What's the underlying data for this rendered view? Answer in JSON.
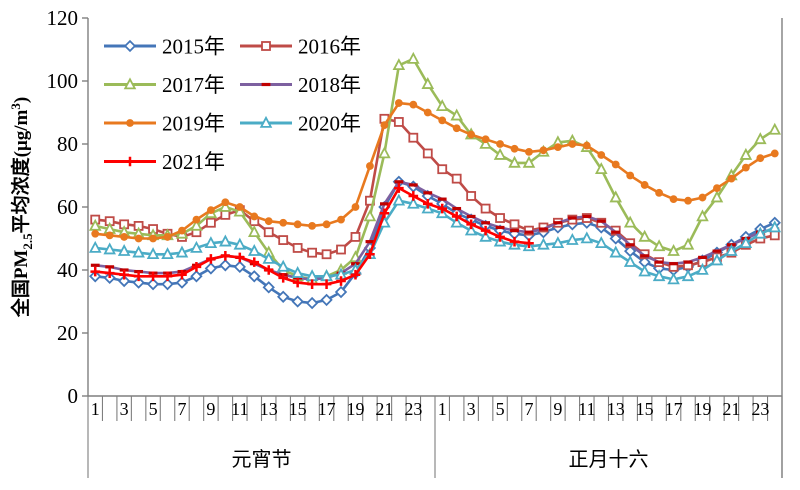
{
  "chart_data": {
    "type": "line",
    "title": "",
    "ylabel_plain": "全国PM2.5平均浓度(μg/m3)",
    "ylabel_parts": {
      "prefix": "全国PM",
      "sub": "2.5",
      "mid": "平均浓度(μg/m",
      "sup": "3",
      "suffix": ")"
    },
    "ylim": [
      0,
      120
    ],
    "yticks": [
      0,
      20,
      40,
      60,
      80,
      100,
      120
    ],
    "grid": false,
    "legend_position": "top-left-inside",
    "axis_color": "#7f7f7f",
    "text_color": "#000000",
    "hours_per_day": 24,
    "day_groups": [
      {
        "label": "元宵节"
      },
      {
        "label": "正月十六"
      }
    ],
    "xtick_labels": [
      "1",
      "3",
      "5",
      "7",
      "9",
      "11",
      "13",
      "15",
      "17",
      "19",
      "21",
      "23"
    ],
    "series": [
      {
        "name": "2015年",
        "color": "#4476b8",
        "marker": "diamond",
        "values": [
          38,
          37.5,
          36.5,
          36,
          35.5,
          35.5,
          36,
          38,
          40.5,
          41.5,
          41,
          38,
          34.5,
          31.5,
          30,
          29.5,
          30.5,
          33,
          39,
          47,
          60,
          68,
          66.5,
          63.5,
          61,
          58,
          56,
          54,
          52.5,
          51.5,
          51,
          52,
          53.5,
          54.5,
          55,
          53.5,
          50,
          46,
          42.5,
          40.5,
          40,
          41,
          43,
          45.5,
          48,
          50.5,
          53,
          55
        ]
      },
      {
        "name": "2016年",
        "color": "#bf4b47",
        "marker": "square",
        "values": [
          56,
          55.5,
          54.5,
          54,
          53,
          51.5,
          50.5,
          52,
          55,
          57.5,
          59,
          55.5,
          52,
          49.5,
          47,
          45.5,
          45,
          46.5,
          50.5,
          62,
          88,
          87,
          82,
          77,
          72,
          69,
          63.5,
          59.5,
          56.5,
          54.5,
          52.5,
          53.5,
          55,
          56,
          56.5,
          55,
          52.5,
          48.5,
          45,
          42.5,
          41,
          41.5,
          42.5,
          44,
          45.5,
          48,
          50,
          51
        ]
      },
      {
        "name": "2017年",
        "color": "#9bbb59",
        "marker": "triangle",
        "values": [
          54,
          53,
          52,
          51.5,
          51,
          51,
          51.5,
          54,
          58,
          60,
          58.5,
          52,
          45.5,
          40,
          38,
          37,
          38,
          40,
          44,
          57,
          77,
          105,
          107,
          99,
          92,
          89,
          83,
          80,
          76.5,
          74,
          74,
          77.5,
          80.5,
          81,
          79,
          72,
          63,
          55,
          50.5,
          47.5,
          46,
          48,
          57,
          63,
          70,
          76.5,
          81.5,
          84.5
        ]
      },
      {
        "name": "2018年",
        "color": "#7d60a0",
        "marker": "dash",
        "marker_color": "#c00000",
        "values": [
          41.5,
          41,
          40,
          39.5,
          39,
          39,
          39.5,
          41.5,
          43.5,
          44.5,
          44,
          42,
          40,
          38.5,
          37.5,
          37,
          37.5,
          39,
          42,
          49,
          61,
          68,
          67,
          64.5,
          62.5,
          59.5,
          57,
          55,
          53.5,
          52.5,
          52,
          53,
          55,
          56.5,
          57,
          55.5,
          52,
          48,
          44.5,
          42.5,
          42,
          42.5,
          44,
          46,
          48,
          50,
          52,
          53
        ]
      },
      {
        "name": "2019年",
        "color": "#e8791f",
        "marker": "circle",
        "values": [
          51.5,
          51,
          50.5,
          50,
          50,
          50.5,
          52.5,
          56,
          59,
          61.5,
          60,
          57,
          55.5,
          55,
          54.5,
          54,
          54.5,
          56,
          60,
          73,
          86,
          93,
          92.5,
          90,
          87.5,
          85,
          83,
          81.5,
          80,
          78.5,
          77.5,
          78,
          79,
          80,
          79.5,
          76.5,
          73.5,
          70,
          67,
          64.5,
          62.5,
          62,
          63,
          66,
          69,
          72.5,
          75.5,
          77
        ]
      },
      {
        "name": "2020年",
        "color": "#4bacc6",
        "marker": "triangle",
        "values": [
          47,
          46.5,
          46,
          45.5,
          45,
          45,
          45.5,
          47,
          48.5,
          49,
          48,
          46,
          43.5,
          41,
          39,
          38,
          38,
          38.5,
          40,
          45,
          55,
          62,
          61,
          59.5,
          58,
          55,
          52.5,
          50.5,
          49,
          48,
          47.5,
          48,
          48.5,
          49.5,
          50,
          48.5,
          45.5,
          42.5,
          39.5,
          38,
          37,
          38,
          40,
          43,
          46,
          48.5,
          51.5,
          53.5
        ]
      },
      {
        "name": "2021年",
        "color": "#fe0000",
        "marker": "plus",
        "values": [
          39.5,
          39,
          38.5,
          38,
          38,
          38,
          38.5,
          41,
          43.5,
          44.5,
          44,
          42.5,
          40,
          37.5,
          36,
          35.5,
          35.5,
          36.5,
          38.5,
          45,
          58,
          66,
          63.5,
          61,
          59.5,
          57,
          54.5,
          52.5,
          50.5,
          49,
          48.5,
          null,
          null,
          null,
          null,
          null,
          null,
          null,
          null,
          null,
          null,
          null,
          null,
          null,
          null,
          null,
          null,
          null
        ]
      }
    ]
  }
}
